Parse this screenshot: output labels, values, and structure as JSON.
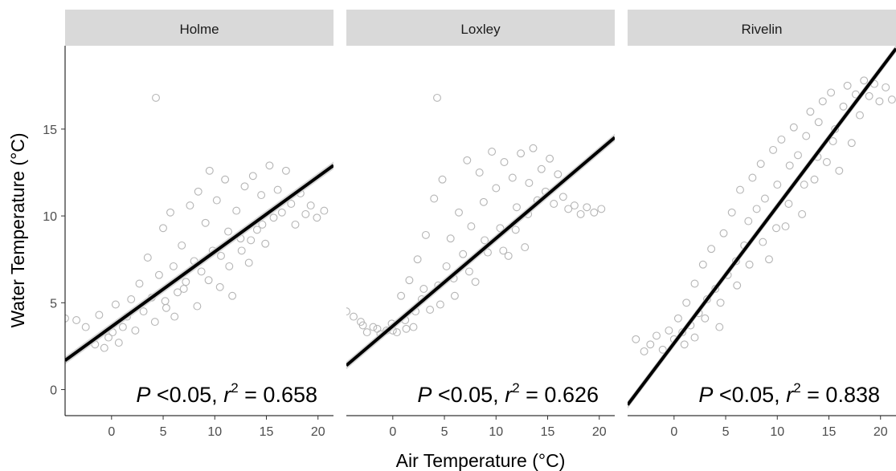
{
  "chart_data": {
    "type": "scatter",
    "facet_by": "river",
    "xlabel": "Air Temperature (°C)",
    "ylabel": "Water Temperature (°C)",
    "xlim": [
      -4.5,
      21.5
    ],
    "ylim": [
      -1.5,
      19.8
    ],
    "xticks": [
      0,
      5,
      10,
      15,
      20
    ],
    "yticks": [
      0,
      5,
      10,
      15
    ],
    "grid": false,
    "point_color": "#b5b5b5",
    "line_color": "#000000",
    "panels": [
      {
        "title": "Holme",
        "fit": {
          "intercept": 3.62,
          "slope": 0.432
        },
        "annotation": {
          "p": "P",
          "p_text": "<0.05,",
          "r": "r",
          "sup": "2",
          "value": "= 0.658"
        },
        "points": [
          [
            4.3,
            16.8
          ],
          [
            -4.5,
            4.1
          ],
          [
            -3.4,
            4.0
          ],
          [
            -2.5,
            3.6
          ],
          [
            -1.6,
            2.6
          ],
          [
            -1.2,
            4.3
          ],
          [
            -0.7,
            2.4
          ],
          [
            -0.3,
            3.0
          ],
          [
            0.1,
            3.3
          ],
          [
            0.4,
            4.9
          ],
          [
            0.7,
            2.7
          ],
          [
            1.1,
            3.6
          ],
          [
            1.5,
            4.2
          ],
          [
            1.9,
            5.2
          ],
          [
            2.3,
            3.4
          ],
          [
            2.7,
            6.1
          ],
          [
            3.1,
            4.5
          ],
          [
            3.5,
            7.6
          ],
          [
            3.9,
            5.3
          ],
          [
            4.2,
            3.9
          ],
          [
            4.6,
            6.6
          ],
          [
            5.0,
            9.3
          ],
          [
            5.3,
            4.7
          ],
          [
            5.7,
            10.2
          ],
          [
            6.0,
            7.1
          ],
          [
            6.4,
            5.6
          ],
          [
            6.8,
            8.3
          ],
          [
            7.2,
            6.2
          ],
          [
            7.6,
            10.6
          ],
          [
            8.0,
            7.4
          ],
          [
            8.4,
            11.4
          ],
          [
            8.7,
            6.8
          ],
          [
            9.1,
            9.6
          ],
          [
            9.5,
            12.6
          ],
          [
            9.8,
            8.0
          ],
          [
            10.2,
            10.9
          ],
          [
            10.6,
            7.7
          ],
          [
            11.0,
            12.1
          ],
          [
            11.3,
            9.1
          ],
          [
            11.7,
            5.4
          ],
          [
            12.1,
            10.3
          ],
          [
            12.5,
            8.7
          ],
          [
            12.9,
            11.7
          ],
          [
            13.3,
            7.3
          ],
          [
            13.7,
            12.3
          ],
          [
            14.1,
            9.2
          ],
          [
            14.5,
            11.2
          ],
          [
            14.9,
            8.4
          ],
          [
            15.3,
            12.9
          ],
          [
            15.7,
            9.9
          ],
          [
            16.1,
            11.5
          ],
          [
            16.5,
            10.2
          ],
          [
            16.9,
            12.6
          ],
          [
            17.4,
            10.7
          ],
          [
            17.8,
            9.5
          ],
          [
            18.3,
            11.3
          ],
          [
            18.8,
            10.1
          ],
          [
            19.3,
            10.6
          ],
          [
            19.9,
            9.9
          ],
          [
            20.6,
            10.3
          ],
          [
            5.2,
            5.1
          ],
          [
            6.1,
            4.2
          ],
          [
            7.0,
            5.8
          ],
          [
            8.3,
            4.8
          ],
          [
            9.4,
            6.3
          ],
          [
            10.5,
            5.9
          ],
          [
            11.4,
            7.1
          ],
          [
            12.6,
            8.0
          ],
          [
            13.5,
            8.6
          ],
          [
            14.6,
            9.5
          ]
        ]
      },
      {
        "title": "Loxley",
        "fit": {
          "intercept": 3.66,
          "slope": 0.505
        },
        "annotation": {
          "p": "P",
          "p_text": "<0.05,",
          "r": "r",
          "sup": "2",
          "value": "= 0.626"
        },
        "points": [
          [
            4.3,
            16.8
          ],
          [
            -4.5,
            4.5
          ],
          [
            -3.8,
            4.2
          ],
          [
            -3.1,
            3.9
          ],
          [
            -2.5,
            3.3
          ],
          [
            -1.9,
            3.6
          ],
          [
            -1.2,
            3.2
          ],
          [
            -0.6,
            3.4
          ],
          [
            -0.1,
            3.8
          ],
          [
            0.4,
            3.3
          ],
          [
            0.8,
            5.4
          ],
          [
            1.2,
            4.0
          ],
          [
            1.6,
            6.3
          ],
          [
            2.0,
            3.6
          ],
          [
            2.4,
            7.5
          ],
          [
            2.8,
            5.2
          ],
          [
            3.2,
            8.9
          ],
          [
            3.6,
            4.6
          ],
          [
            4.0,
            11.0
          ],
          [
            4.4,
            6.0
          ],
          [
            4.8,
            12.1
          ],
          [
            5.2,
            7.1
          ],
          [
            5.6,
            8.7
          ],
          [
            6.0,
            5.4
          ],
          [
            6.4,
            10.2
          ],
          [
            6.8,
            7.8
          ],
          [
            7.2,
            13.2
          ],
          [
            7.6,
            9.4
          ],
          [
            8.0,
            6.2
          ],
          [
            8.4,
            12.5
          ],
          [
            8.8,
            10.8
          ],
          [
            9.2,
            7.9
          ],
          [
            9.6,
            13.7
          ],
          [
            10.0,
            11.6
          ],
          [
            10.4,
            9.3
          ],
          [
            10.8,
            13.1
          ],
          [
            11.2,
            7.7
          ],
          [
            11.6,
            12.2
          ],
          [
            12.0,
            10.5
          ],
          [
            12.4,
            13.6
          ],
          [
            12.8,
            8.2
          ],
          [
            13.2,
            11.9
          ],
          [
            13.6,
            13.9
          ],
          [
            14.0,
            10.9
          ],
          [
            14.4,
            12.7
          ],
          [
            14.8,
            11.4
          ],
          [
            15.2,
            13.3
          ],
          [
            15.6,
            10.7
          ],
          [
            16.0,
            12.4
          ],
          [
            16.5,
            11.1
          ],
          [
            17.0,
            10.4
          ],
          [
            17.6,
            10.6
          ],
          [
            18.2,
            10.1
          ],
          [
            18.8,
            10.5
          ],
          [
            19.5,
            10.2
          ],
          [
            20.2,
            10.4
          ],
          [
            -2.9,
            3.7
          ],
          [
            -1.5,
            3.5
          ],
          [
            0.0,
            3.4
          ],
          [
            1.3,
            3.5
          ],
          [
            2.2,
            4.5
          ],
          [
            3.0,
            5.8
          ],
          [
            4.6,
            4.9
          ],
          [
            5.9,
            6.4
          ],
          [
            7.4,
            6.8
          ],
          [
            8.9,
            8.6
          ],
          [
            10.7,
            8.0
          ],
          [
            11.9,
            9.2
          ],
          [
            13.1,
            10.1
          ]
        ]
      },
      {
        "title": "Rivelin",
        "fit": {
          "intercept": 2.67,
          "slope": 0.789
        },
        "annotation": {
          "p": "P",
          "p_text": "<0.05,",
          "r": "r",
          "sup": "2",
          "value": "= 0.838"
        },
        "points": [
          [
            -3.7,
            2.9
          ],
          [
            -2.9,
            2.2
          ],
          [
            -2.3,
            2.6
          ],
          [
            -1.7,
            3.1
          ],
          [
            -1.1,
            2.3
          ],
          [
            -0.5,
            3.4
          ],
          [
            0.0,
            2.9
          ],
          [
            0.4,
            4.1
          ],
          [
            0.8,
            3.3
          ],
          [
            1.2,
            5.0
          ],
          [
            1.6,
            3.7
          ],
          [
            2.0,
            6.1
          ],
          [
            2.4,
            4.4
          ],
          [
            2.8,
            7.2
          ],
          [
            3.2,
            5.2
          ],
          [
            3.6,
            8.1
          ],
          [
            4.0,
            5.8
          ],
          [
            4.4,
            3.6
          ],
          [
            4.8,
            9.0
          ],
          [
            5.2,
            6.6
          ],
          [
            5.6,
            10.2
          ],
          [
            6.0,
            7.4
          ],
          [
            6.4,
            11.5
          ],
          [
            6.8,
            8.3
          ],
          [
            7.2,
            9.7
          ],
          [
            7.6,
            12.2
          ],
          [
            8.0,
            10.4
          ],
          [
            8.4,
            13.0
          ],
          [
            8.8,
            11.0
          ],
          [
            9.2,
            7.5
          ],
          [
            9.6,
            13.8
          ],
          [
            10.0,
            11.8
          ],
          [
            10.4,
            14.4
          ],
          [
            10.8,
            9.4
          ],
          [
            11.2,
            12.9
          ],
          [
            11.6,
            15.1
          ],
          [
            12.0,
            13.5
          ],
          [
            12.4,
            10.1
          ],
          [
            12.8,
            14.6
          ],
          [
            13.2,
            16.0
          ],
          [
            13.6,
            12.1
          ],
          [
            14.0,
            15.4
          ],
          [
            14.4,
            16.6
          ],
          [
            14.8,
            13.1
          ],
          [
            15.2,
            17.1
          ],
          [
            15.6,
            15.0
          ],
          [
            16.0,
            12.6
          ],
          [
            16.4,
            16.3
          ],
          [
            16.8,
            17.5
          ],
          [
            17.2,
            14.2
          ],
          [
            17.6,
            17.0
          ],
          [
            18.0,
            15.8
          ],
          [
            18.4,
            17.8
          ],
          [
            18.9,
            16.9
          ],
          [
            19.4,
            17.6
          ],
          [
            19.9,
            16.6
          ],
          [
            20.5,
            17.4
          ],
          [
            21.1,
            16.7
          ],
          [
            3.0,
            4.1
          ],
          [
            4.5,
            5.0
          ],
          [
            6.1,
            6.0
          ],
          [
            7.3,
            7.2
          ],
          [
            8.6,
            8.5
          ],
          [
            9.9,
            9.3
          ],
          [
            11.1,
            10.7
          ],
          [
            12.6,
            11.8
          ],
          [
            13.9,
            13.4
          ],
          [
            15.4,
            14.3
          ],
          [
            1.0,
            2.6
          ],
          [
            2.0,
            3.0
          ]
        ]
      }
    ]
  }
}
